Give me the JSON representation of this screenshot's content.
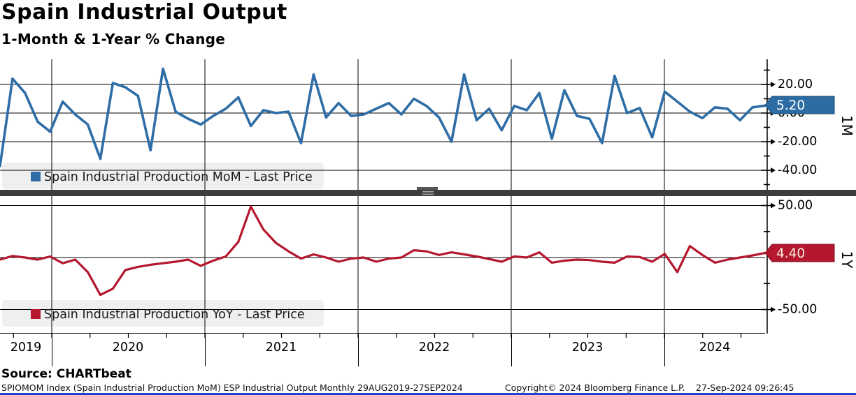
{
  "header": {
    "title": "Spain Industrial Output",
    "subtitle": "1-Month & 1-Year % Change"
  },
  "panels": {
    "mom": {
      "legend": "Spain Industrial Production MoM - Last Price",
      "last_price": "5.20",
      "axis_label": "1M",
      "y_ticks": [
        "20.00",
        "0.00",
        "-20.00",
        "-40.00"
      ],
      "color": "#2e6da6",
      "badge_color": "#2d6ca3"
    },
    "yoy": {
      "legend": "Spain Industrial Production YoY - Last Price",
      "last_price": "4.40",
      "axis_label": "1Y",
      "y_ticks": [
        "50.00",
        "0.00",
        "-50.00"
      ],
      "color": "#b4172e",
      "badge_color": "#b4172e"
    }
  },
  "x_axis": {
    "years": [
      "2019",
      "2020",
      "2021",
      "2022",
      "2023",
      "2024"
    ]
  },
  "source_line": "Source: CHARTbeat",
  "footer": {
    "left": "SPIOMOM Index (Spain Industrial Production MoM) ESP Industrial Output  Monthly 29AUG2019-27SEP2024",
    "center": "Copyright© 2024 Bloomberg Finance L.P.",
    "right": "27-Sep-2024 09:26:45"
  },
  "colors": {
    "separator": "#3d3d3d",
    "separator_grip": "#b0b0b0",
    "legend_bg": "#efefef",
    "grid": "#000000",
    "bottom_bar": "#2342cc"
  },
  "chart_data": [
    {
      "type": "line",
      "name": "Spain Industrial Production MoM - Last Price",
      "frequency": "monthly",
      "x_start": "2019-08",
      "x_end": "2024-09",
      "color": "#2e6da6",
      "ylim": [
        -53,
        37
      ],
      "y_ticks": [
        20,
        0,
        -20,
        -40
      ],
      "last_price": 5.2,
      "values": [
        -37,
        24,
        14,
        -6,
        -13,
        8,
        -1,
        -8,
        -32,
        21,
        18,
        12,
        -26,
        31,
        1,
        -4,
        -8,
        -2,
        3,
        11,
        -9,
        2,
        0,
        1,
        -21,
        27,
        -3,
        7,
        -2,
        -1,
        3,
        7,
        -1,
        10,
        5,
        -3,
        -20,
        27,
        -5,
        3,
        -12,
        5,
        2,
        14,
        -18,
        16,
        -2,
        -4,
        -21,
        26,
        0,
        3.5,
        -17,
        15,
        8,
        1,
        -3.5,
        4,
        3,
        -5,
        4,
        5.2
      ]
    },
    {
      "type": "line",
      "name": "Spain Industrial Production YoY - Last Price",
      "frequency": "monthly",
      "x_start": "2019-08",
      "x_end": "2024-09",
      "color": "#b4172e",
      "ylim": [
        -73,
        58
      ],
      "y_ticks": [
        50,
        0,
        -50
      ],
      "last_price": 4.4,
      "values": [
        -2,
        1.5,
        0,
        -2,
        1,
        -5.5,
        -2,
        -14,
        -36,
        -30,
        -12,
        -9,
        -7,
        -5.5,
        -4,
        -2,
        -8,
        -3,
        1,
        15,
        49,
        27,
        14,
        6,
        -1,
        3,
        0,
        -4,
        -1,
        0,
        -4,
        -1,
        0,
        7,
        6,
        2.5,
        5,
        3,
        1,
        -1.5,
        -4,
        1,
        0,
        5,
        -5,
        -3,
        -2,
        -2.5,
        -4,
        -5,
        1,
        0.5,
        -4,
        3.5,
        -14,
        11,
        2.5,
        -5,
        -2,
        0,
        2,
        4.4
      ]
    }
  ]
}
